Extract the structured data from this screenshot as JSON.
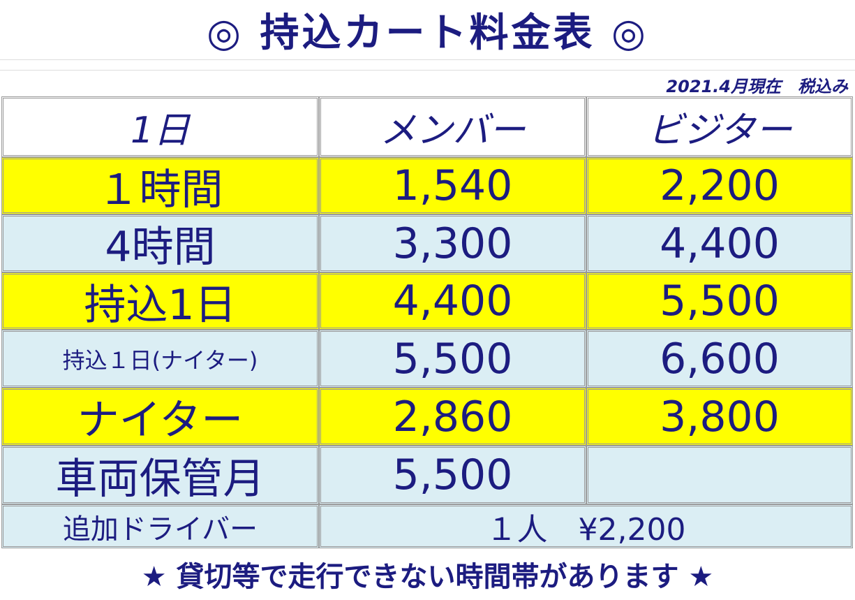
{
  "header": {
    "title": "◎ 持込カート料金表 ◎",
    "note": "2021.4月現在　税込み"
  },
  "table": {
    "columns": [
      "1日",
      "メンバー",
      "ビジター"
    ],
    "rows": [
      [
        "１時間",
        "1,540",
        "2,200"
      ],
      [
        "4時間",
        "3,300",
        "4,400"
      ],
      [
        "持込1日",
        "4,400",
        "5,500"
      ],
      [
        "持込１日(ナイター)",
        "5,500",
        "6,600"
      ],
      [
        "ナイター",
        "2,860",
        "3,800"
      ],
      [
        "車両保管月",
        "5,500"
      ]
    ],
    "extra": {
      "label": "追加ドライバー",
      "text": "１人　¥2,200"
    }
  },
  "footer": {
    "text": "★ 貸切等で走行できない時間帯があります ★"
  }
}
